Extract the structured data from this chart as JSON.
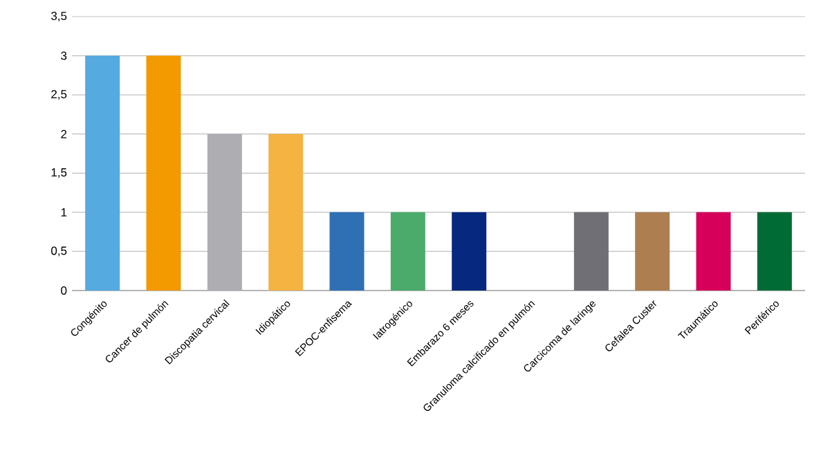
{
  "chart_data": {
    "type": "bar",
    "categories": [
      "Congénito",
      "Cancer de pulmón",
      "Discopatia cervical",
      "Idiopático",
      "EPOC-enfisema",
      "Iatrogénico",
      "Embarazo 6 meses",
      "Granuloma calcificado en pulmón",
      "Carcicoma de laringe",
      "Cefalea Custer",
      "Traumático",
      "Periférico"
    ],
    "values": [
      3,
      3,
      2,
      2,
      1,
      1,
      1,
      0,
      1,
      1,
      1,
      1
    ],
    "colors": [
      "#55aadf",
      "#f29a00",
      "#adadb2",
      "#f5b342",
      "#2f6fb4",
      "#4aab6b",
      "#06297f",
      null,
      "#6f6f75",
      "#ad7f50",
      "#d6005a",
      "#006b35"
    ],
    "ylim": [
      0,
      3.5
    ],
    "yticks": [
      {
        "value": 0,
        "label": "0"
      },
      {
        "value": 0.5,
        "label": "0,5"
      },
      {
        "value": 1,
        "label": "1"
      },
      {
        "value": 1.5,
        "label": "1,5"
      },
      {
        "value": 2,
        "label": "2"
      },
      {
        "value": 2.5,
        "label": "2,5"
      },
      {
        "value": 3,
        "label": "3"
      },
      {
        "value": 3.5,
        "label": "3,5"
      }
    ],
    "grid": "y"
  }
}
